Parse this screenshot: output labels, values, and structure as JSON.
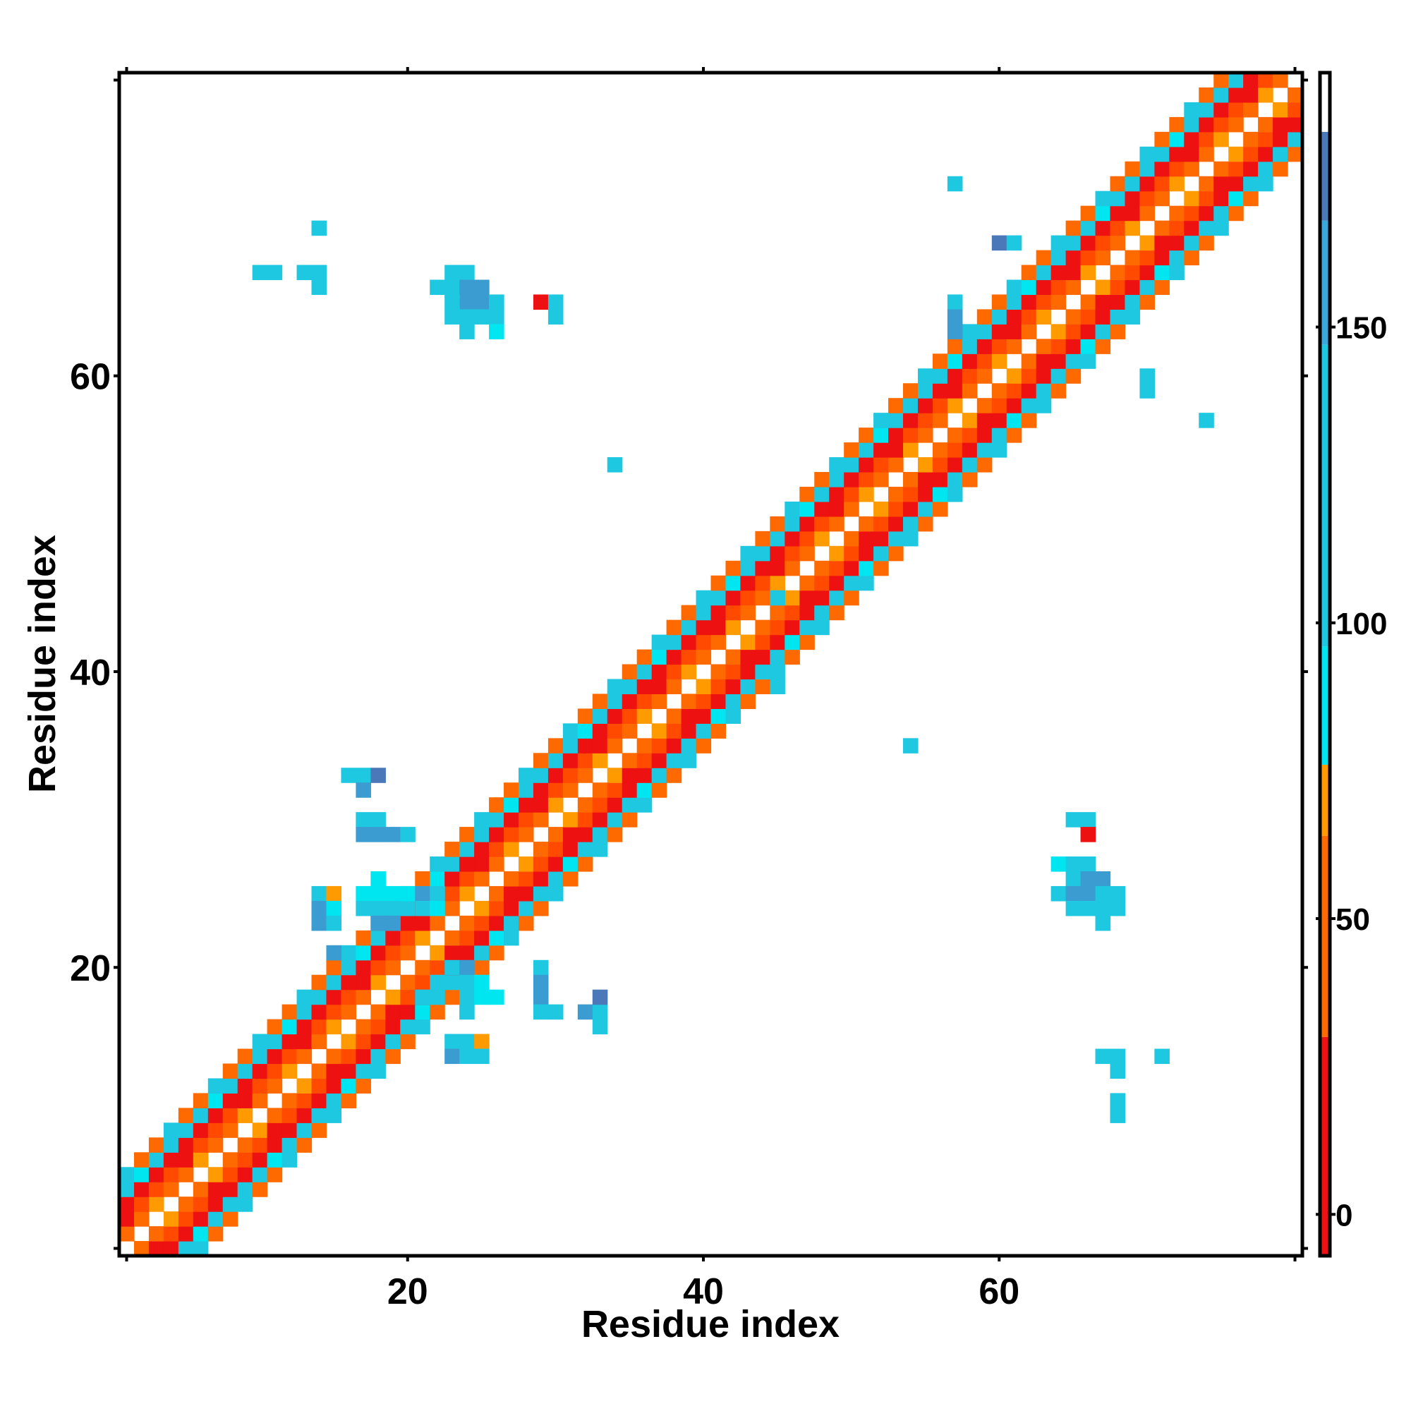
{
  "chart_data": {
    "type": "heatmap",
    "title": "",
    "xlabel": "Residue index",
    "ylabel": "Residue index",
    "xlim": [
      0.5,
      80.5
    ],
    "ylim": [
      0.5,
      80.5
    ],
    "x_ticks": [
      20,
      40,
      60
    ],
    "y_ticks": [
      20,
      40,
      60
    ],
    "colorbar": {
      "ticks": [
        0,
        50,
        100,
        150
      ],
      "range": [
        -7,
        193
      ],
      "bands": [
        {
          "from": -7,
          "to": 30,
          "color": "#ee1111"
        },
        {
          "from": 30,
          "to": 64,
          "color": "#ff6a00"
        },
        {
          "from": 64,
          "to": 76,
          "color": "#ff9a00"
        },
        {
          "from": 76,
          "to": 96,
          "color": "#00e6f0"
        },
        {
          "from": 96,
          "to": 147,
          "color": "#1ec8e0"
        },
        {
          "from": 147,
          "to": 168,
          "color": "#3aa8d8"
        },
        {
          "from": 168,
          "to": 183,
          "color": "#4a78b8"
        },
        {
          "from": 183,
          "to": 193,
          "color": "#ffffff"
        }
      ]
    },
    "colors": {
      "red": "#ee1111",
      "orange_red": "#ff4a00",
      "orange": "#ff6a00",
      "amber": "#ff9a00",
      "cyan": "#00e6f0",
      "sky": "#1ec8e0",
      "steel": "#3a9cd0",
      "navy": "#4a78b8"
    },
    "diagonal_band": {
      "from_residue": 1,
      "to_residue": 80,
      "max_offset": 5,
      "offset_colors": {
        "1": "orange",
        "2": "orange_red",
        "3": "red",
        "4": "sky",
        "5": "orange"
      }
    },
    "off_diagonal_contacts": [
      {
        "x": 10,
        "y": 67,
        "c": "sky"
      },
      {
        "x": 11,
        "y": 67,
        "c": "sky"
      },
      {
        "x": 13,
        "y": 67,
        "c": "sky"
      },
      {
        "x": 14,
        "y": 67,
        "c": "sky"
      },
      {
        "x": 14,
        "y": 66,
        "c": "sky"
      },
      {
        "x": 14,
        "y": 70,
        "c": "sky"
      },
      {
        "x": 22,
        "y": 66,
        "c": "sky"
      },
      {
        "x": 23,
        "y": 66,
        "c": "sky"
      },
      {
        "x": 23,
        "y": 67,
        "c": "sky"
      },
      {
        "x": 24,
        "y": 67,
        "c": "sky"
      },
      {
        "x": 24,
        "y": 66,
        "c": "steel"
      },
      {
        "x": 25,
        "y": 66,
        "c": "steel"
      },
      {
        "x": 24,
        "y": 65,
        "c": "steel"
      },
      {
        "x": 25,
        "y": 65,
        "c": "steel"
      },
      {
        "x": 23,
        "y": 65,
        "c": "sky"
      },
      {
        "x": 26,
        "y": 65,
        "c": "sky"
      },
      {
        "x": 23,
        "y": 64,
        "c": "sky"
      },
      {
        "x": 24,
        "y": 64,
        "c": "sky"
      },
      {
        "x": 25,
        "y": 64,
        "c": "sky"
      },
      {
        "x": 26,
        "y": 64,
        "c": "sky"
      },
      {
        "x": 24,
        "y": 63,
        "c": "sky"
      },
      {
        "x": 26,
        "y": 63,
        "c": "cyan"
      },
      {
        "x": 29,
        "y": 65,
        "c": "red"
      },
      {
        "x": 30,
        "y": 65,
        "c": "sky"
      },
      {
        "x": 30,
        "y": 64,
        "c": "sky"
      },
      {
        "x": 57,
        "y": 73,
        "c": "sky"
      },
      {
        "x": 60,
        "y": 69,
        "c": "navy"
      },
      {
        "x": 61,
        "y": 69,
        "c": "sky"
      },
      {
        "x": 57,
        "y": 65,
        "c": "sky"
      },
      {
        "x": 57,
        "y": 64,
        "c": "steel"
      },
      {
        "x": 57,
        "y": 63,
        "c": "steel"
      },
      {
        "x": 70,
        "y": 59,
        "c": "sky"
      },
      {
        "x": 70,
        "y": 60,
        "c": "sky"
      },
      {
        "x": 74,
        "y": 57,
        "c": "sky"
      },
      {
        "x": 34,
        "y": 54,
        "c": "sky"
      },
      {
        "x": 45,
        "y": 45,
        "c": "sky"
      },
      {
        "x": 45,
        "y": 39,
        "c": "sky"
      },
      {
        "x": 54,
        "y": 35,
        "c": "sky"
      },
      {
        "x": 16,
        "y": 33,
        "c": "sky"
      },
      {
        "x": 17,
        "y": 33,
        "c": "sky"
      },
      {
        "x": 18,
        "y": 33,
        "c": "navy"
      },
      {
        "x": 17,
        "y": 32,
        "c": "steel"
      },
      {
        "x": 17,
        "y": 30,
        "c": "sky"
      },
      {
        "x": 18,
        "y": 30,
        "c": "sky"
      },
      {
        "x": 17,
        "y": 29,
        "c": "steel"
      },
      {
        "x": 18,
        "y": 29,
        "c": "steel"
      },
      {
        "x": 19,
        "y": 29,
        "c": "steel"
      },
      {
        "x": 20,
        "y": 29,
        "c": "sky"
      },
      {
        "x": 14,
        "y": 25,
        "c": "sky"
      },
      {
        "x": 15,
        "y": 25,
        "c": "amber"
      },
      {
        "x": 14,
        "y": 24,
        "c": "steel"
      },
      {
        "x": 15,
        "y": 24,
        "c": "cyan"
      },
      {
        "x": 14,
        "y": 23,
        "c": "steel"
      },
      {
        "x": 15,
        "y": 23,
        "c": "sky"
      },
      {
        "x": 17,
        "y": 25,
        "c": "cyan"
      },
      {
        "x": 18,
        "y": 25,
        "c": "cyan"
      },
      {
        "x": 19,
        "y": 25,
        "c": "cyan"
      },
      {
        "x": 20,
        "y": 25,
        "c": "cyan"
      },
      {
        "x": 18,
        "y": 26,
        "c": "cyan"
      },
      {
        "x": 17,
        "y": 24,
        "c": "sky"
      },
      {
        "x": 18,
        "y": 24,
        "c": "sky"
      },
      {
        "x": 19,
        "y": 24,
        "c": "sky"
      },
      {
        "x": 18,
        "y": 23,
        "c": "steel"
      },
      {
        "x": 19,
        "y": 23,
        "c": "steel"
      },
      {
        "x": 21,
        "y": 25,
        "c": "steel"
      },
      {
        "x": 22,
        "y": 25,
        "c": "sky"
      },
      {
        "x": 21,
        "y": 24,
        "c": "sky"
      },
      {
        "x": 22,
        "y": 24,
        "c": "cyan"
      },
      {
        "x": 15,
        "y": 21,
        "c": "steel"
      },
      {
        "x": 23,
        "y": 20,
        "c": "sky"
      },
      {
        "x": 24,
        "y": 20,
        "c": "steel"
      },
      {
        "x": 24,
        "y": 19,
        "c": "sky"
      },
      {
        "x": 25,
        "y": 19,
        "c": "cyan"
      },
      {
        "x": 24,
        "y": 18,
        "c": "sky"
      },
      {
        "x": 25,
        "y": 18,
        "c": "cyan"
      },
      {
        "x": 26,
        "y": 18,
        "c": "cyan"
      },
      {
        "x": 24,
        "y": 17,
        "c": "sky"
      },
      {
        "x": 22,
        "y": 19,
        "c": "sky"
      },
      {
        "x": 22,
        "y": 18,
        "c": "sky"
      },
      {
        "x": 21,
        "y": 18,
        "c": "sky"
      },
      {
        "x": 29,
        "y": 20,
        "c": "sky"
      },
      {
        "x": 29,
        "y": 19,
        "c": "steel"
      },
      {
        "x": 29,
        "y": 18,
        "c": "steel"
      },
      {
        "x": 29,
        "y": 17,
        "c": "sky"
      },
      {
        "x": 30,
        "y": 17,
        "c": "sky"
      },
      {
        "x": 32,
        "y": 17,
        "c": "steel"
      },
      {
        "x": 33,
        "y": 17,
        "c": "sky"
      },
      {
        "x": 33,
        "y": 18,
        "c": "navy"
      },
      {
        "x": 33,
        "y": 16,
        "c": "sky"
      },
      {
        "x": 23,
        "y": 15,
        "c": "sky"
      },
      {
        "x": 23,
        "y": 14,
        "c": "steel"
      },
      {
        "x": 24,
        "y": 15,
        "c": "sky"
      },
      {
        "x": 24,
        "y": 14,
        "c": "sky"
      },
      {
        "x": 25,
        "y": 15,
        "c": "amber"
      },
      {
        "x": 25,
        "y": 14,
        "c": "sky"
      },
      {
        "x": 65,
        "y": 30,
        "c": "sky"
      },
      {
        "x": 66,
        "y": 30,
        "c": "sky"
      },
      {
        "x": 66,
        "y": 29,
        "c": "red"
      },
      {
        "x": 64,
        "y": 27,
        "c": "cyan"
      },
      {
        "x": 65,
        "y": 27,
        "c": "sky"
      },
      {
        "x": 66,
        "y": 27,
        "c": "sky"
      },
      {
        "x": 65,
        "y": 26,
        "c": "sky"
      },
      {
        "x": 66,
        "y": 26,
        "c": "steel"
      },
      {
        "x": 67,
        "y": 26,
        "c": "steel"
      },
      {
        "x": 64,
        "y": 25,
        "c": "sky"
      },
      {
        "x": 65,
        "y": 25,
        "c": "steel"
      },
      {
        "x": 66,
        "y": 25,
        "c": "steel"
      },
      {
        "x": 67,
        "y": 25,
        "c": "sky"
      },
      {
        "x": 68,
        "y": 25,
        "c": "sky"
      },
      {
        "x": 65,
        "y": 24,
        "c": "sky"
      },
      {
        "x": 66,
        "y": 24,
        "c": "sky"
      },
      {
        "x": 67,
        "y": 24,
        "c": "sky"
      },
      {
        "x": 68,
        "y": 24,
        "c": "sky"
      },
      {
        "x": 67,
        "y": 23,
        "c": "sky"
      },
      {
        "x": 67,
        "y": 14,
        "c": "sky"
      },
      {
        "x": 68,
        "y": 14,
        "c": "sky"
      },
      {
        "x": 68,
        "y": 13,
        "c": "sky"
      },
      {
        "x": 71,
        "y": 14,
        "c": "sky"
      },
      {
        "x": 68,
        "y": 11,
        "c": "sky"
      },
      {
        "x": 68,
        "y": 10,
        "c": "sky"
      }
    ]
  }
}
